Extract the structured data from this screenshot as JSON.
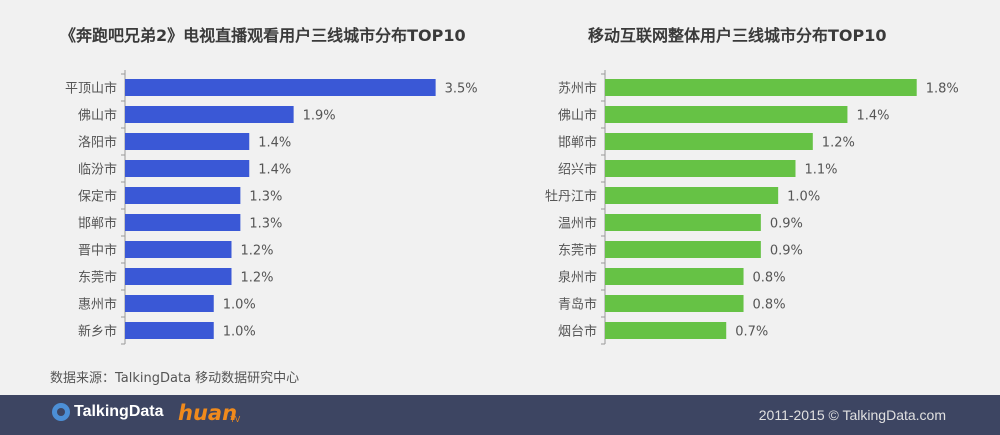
{
  "chart_data": [
    {
      "type": "bar",
      "orientation": "horizontal",
      "title": "《奔跑吧兄弟2》电视直播观看用户三线城市分布TOP10",
      "categories": [
        "平顶山市",
        "佛山市",
        "洛阳市",
        "临汾市",
        "保定市",
        "邯郸市",
        "晋中市",
        "东莞市",
        "惠州市",
        "新乡市"
      ],
      "values": [
        3.5,
        1.9,
        1.4,
        1.4,
        1.3,
        1.3,
        1.2,
        1.2,
        1.0,
        1.0
      ],
      "labels": [
        "3.5%",
        "1.9%",
        "1.4%",
        "1.4%",
        "1.3%",
        "1.3%",
        "1.2%",
        "1.2%",
        "1.0%",
        "1.0%"
      ],
      "unit": "%",
      "color": "#3a58d6",
      "xlim": [
        0,
        4.0
      ],
      "grid": false
    },
    {
      "type": "bar",
      "orientation": "horizontal",
      "title": "移动互联网整体用户三线城市分布TOP10",
      "categories": [
        "苏州市",
        "佛山市",
        "邯郸市",
        "绍兴市",
        "牡丹江市",
        "温州市",
        "东莞市",
        "泉州市",
        "青岛市",
        "烟台市"
      ],
      "values": [
        1.8,
        1.4,
        1.2,
        1.1,
        1.0,
        0.9,
        0.9,
        0.8,
        0.8,
        0.7
      ],
      "labels": [
        "1.8%",
        "1.4%",
        "1.2%",
        "1.1%",
        "1.0%",
        "0.9%",
        "0.9%",
        "0.8%",
        "0.8%",
        "0.7%"
      ],
      "unit": "%",
      "color": "#66c245",
      "xlim": [
        0,
        2.05
      ],
      "grid": false
    }
  ],
  "source": "数据来源：TalkingData 移动数据研究中心",
  "footer": {
    "logo_talkingdata": "TalkingData",
    "logo_huan": "huan",
    "logo_huan_tv": "TV",
    "copyright": "2011-2015 © TalkingData.com"
  }
}
